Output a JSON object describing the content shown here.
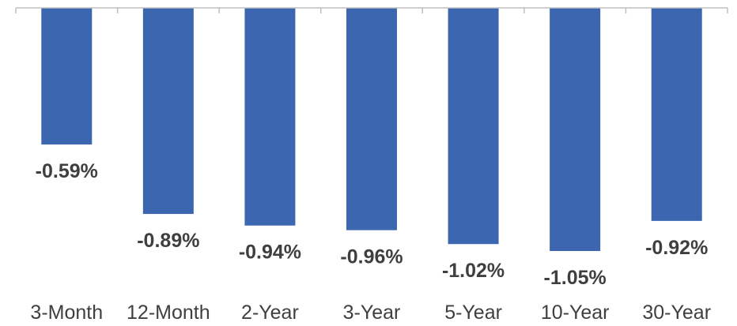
{
  "chart_data": {
    "type": "bar",
    "categories": [
      "3-Month",
      "12-Month",
      "2-Year",
      "3-Year",
      "5-Year",
      "10-Year",
      "30-Year"
    ],
    "values": [
      -0.59,
      -0.89,
      -0.94,
      -0.96,
      -1.02,
      -1.05,
      -0.92
    ],
    "data_labels": [
      "-0.59%",
      "-0.89%",
      "-0.94%",
      "-0.96%",
      "-1.02%",
      "-1.05%",
      "-0.92%"
    ],
    "title": "",
    "xlabel": "",
    "ylabel": "",
    "ylim": [
      -1.05,
      0
    ],
    "grid": false,
    "bar_color": "#3D66B0"
  }
}
